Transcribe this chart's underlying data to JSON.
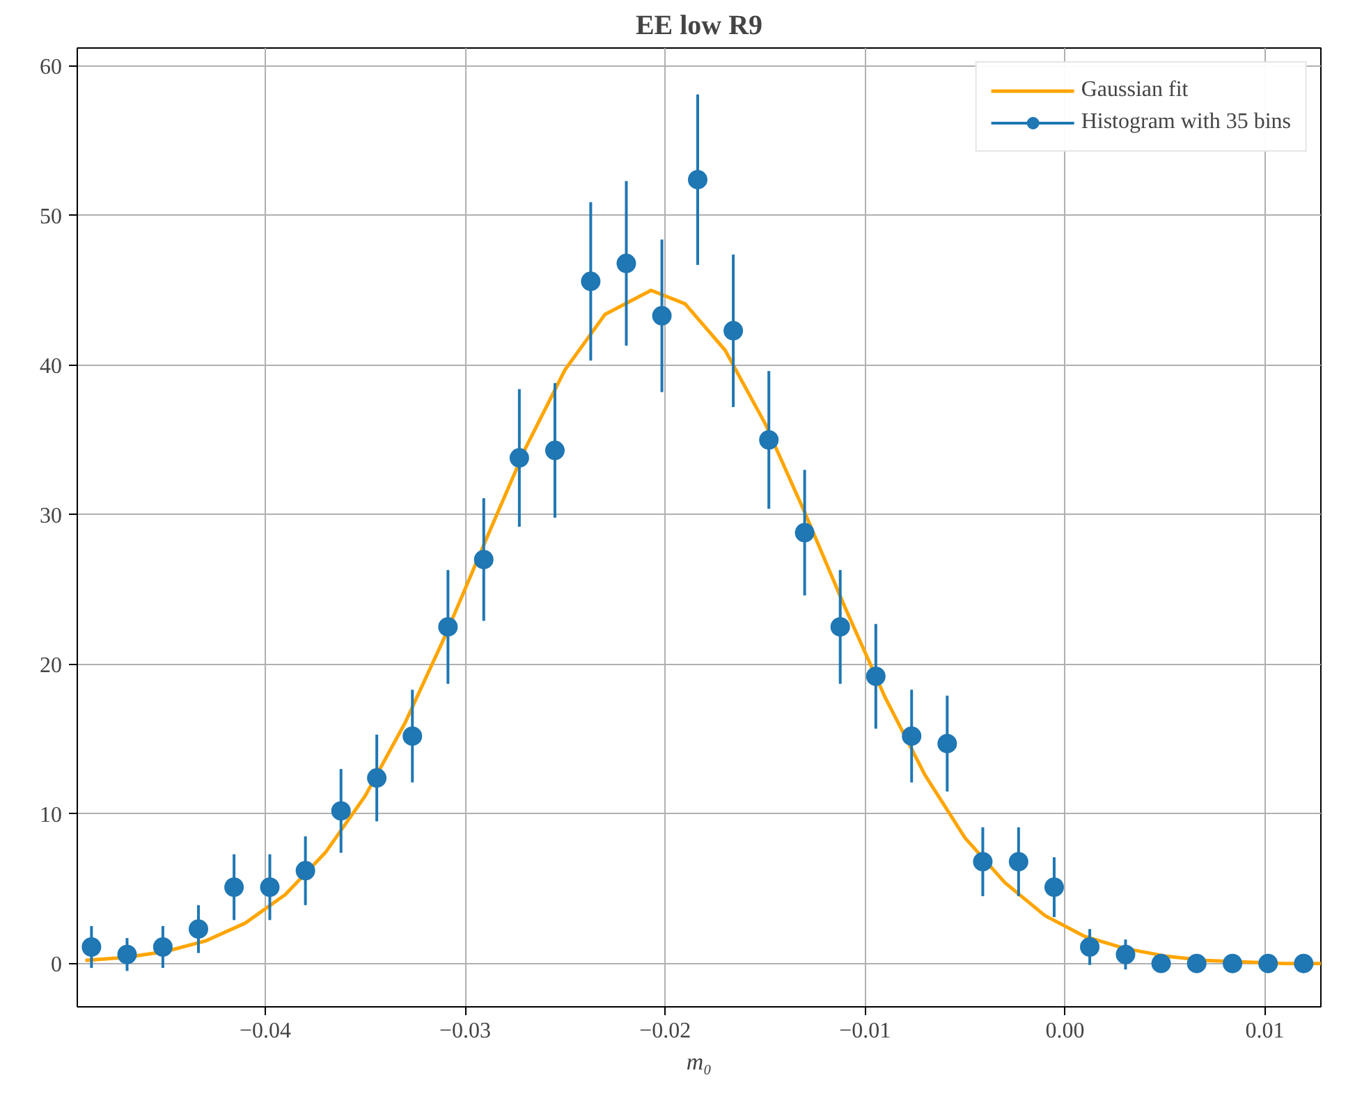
{
  "chart_data": {
    "type": "scatter",
    "title": "EE low R9",
    "xlabel": "m₀",
    "xlim": [
      -0.0494,
      0.0128
    ],
    "ylim": [
      -2.9,
      61.2
    ],
    "xticks": [
      {
        "value": -0.04,
        "label": "−0.04"
      },
      {
        "value": -0.03,
        "label": "−0.03"
      },
      {
        "value": -0.02,
        "label": "−0.02"
      },
      {
        "value": -0.01,
        "label": "−0.01"
      },
      {
        "value": 0.0,
        "label": "0.00"
      },
      {
        "value": 0.01,
        "label": "0.01"
      }
    ],
    "yticks": [
      0,
      10,
      20,
      30,
      40,
      50,
      60
    ],
    "grid": true,
    "legend": "top right",
    "series": [
      {
        "name": "Gaussian fit",
        "type": "line",
        "color": "#ffa500",
        "marker": "none",
        "line_style": "solid",
        "x": [
          -0.049,
          -0.047,
          -0.045,
          -0.043,
          -0.041,
          -0.039,
          -0.037,
          -0.035,
          -0.033,
          -0.031,
          -0.029,
          -0.027,
          -0.025,
          -0.023,
          -0.0207,
          -0.019,
          -0.017,
          -0.015,
          -0.013,
          -0.011,
          -0.009,
          -0.007,
          -0.005,
          -0.003,
          -0.001,
          0.001,
          0.003,
          0.005,
          0.007,
          0.009,
          0.011,
          0.0128
        ],
        "values": [
          0.2,
          0.4,
          0.8,
          1.5,
          2.7,
          4.6,
          7.4,
          11.2,
          16.1,
          21.9,
          28.2,
          34.4,
          39.7,
          43.4,
          45.0,
          44.1,
          41.0,
          36.1,
          30.1,
          23.8,
          17.8,
          12.6,
          8.4,
          5.4,
          3.2,
          1.8,
          1.0,
          0.5,
          0.2,
          0.1,
          0.0,
          0.0
        ]
      },
      {
        "name": "Histogram with 35 bins",
        "color": "#1f77b4",
        "marker": "circle",
        "x": [
          -0.04869,
          -0.04691,
          -0.04512,
          -0.04334,
          -0.04156,
          -0.03977,
          -0.03799,
          -0.03621,
          -0.03442,
          -0.03264,
          -0.03086,
          -0.02907,
          -0.02729,
          -0.02551,
          -0.02372,
          -0.02194,
          -0.02016,
          -0.01837,
          -0.01659,
          -0.01481,
          -0.01302,
          -0.01124,
          -0.00946,
          -0.00767,
          -0.00589,
          -0.00411,
          -0.00232,
          -0.00054,
          0.00124,
          0.00303,
          0.00481,
          0.00659,
          0.00838,
          0.01016,
          0.01194
        ],
        "values": [
          1.1,
          0.6,
          1.1,
          2.3,
          5.1,
          5.1,
          6.2,
          10.2,
          12.4,
          15.2,
          22.5,
          27.0,
          33.8,
          34.3,
          45.6,
          46.8,
          43.3,
          52.4,
          42.3,
          35.0,
          28.8,
          22.5,
          19.2,
          15.2,
          14.7,
          6.8,
          6.8,
          5.1,
          1.1,
          0.6,
          0,
          0,
          0,
          0,
          0
        ],
        "errors": [
          1.4,
          1.1,
          1.4,
          1.6,
          2.2,
          2.2,
          2.3,
          2.8,
          2.9,
          3.1,
          3.8,
          4.1,
          4.6,
          4.5,
          5.3,
          5.5,
          5.1,
          5.7,
          5.1,
          4.6,
          4.2,
          3.8,
          3.5,
          3.1,
          3.2,
          2.3,
          2.3,
          2.0,
          1.2,
          1.0,
          null,
          null,
          null,
          null,
          null
        ]
      }
    ]
  }
}
